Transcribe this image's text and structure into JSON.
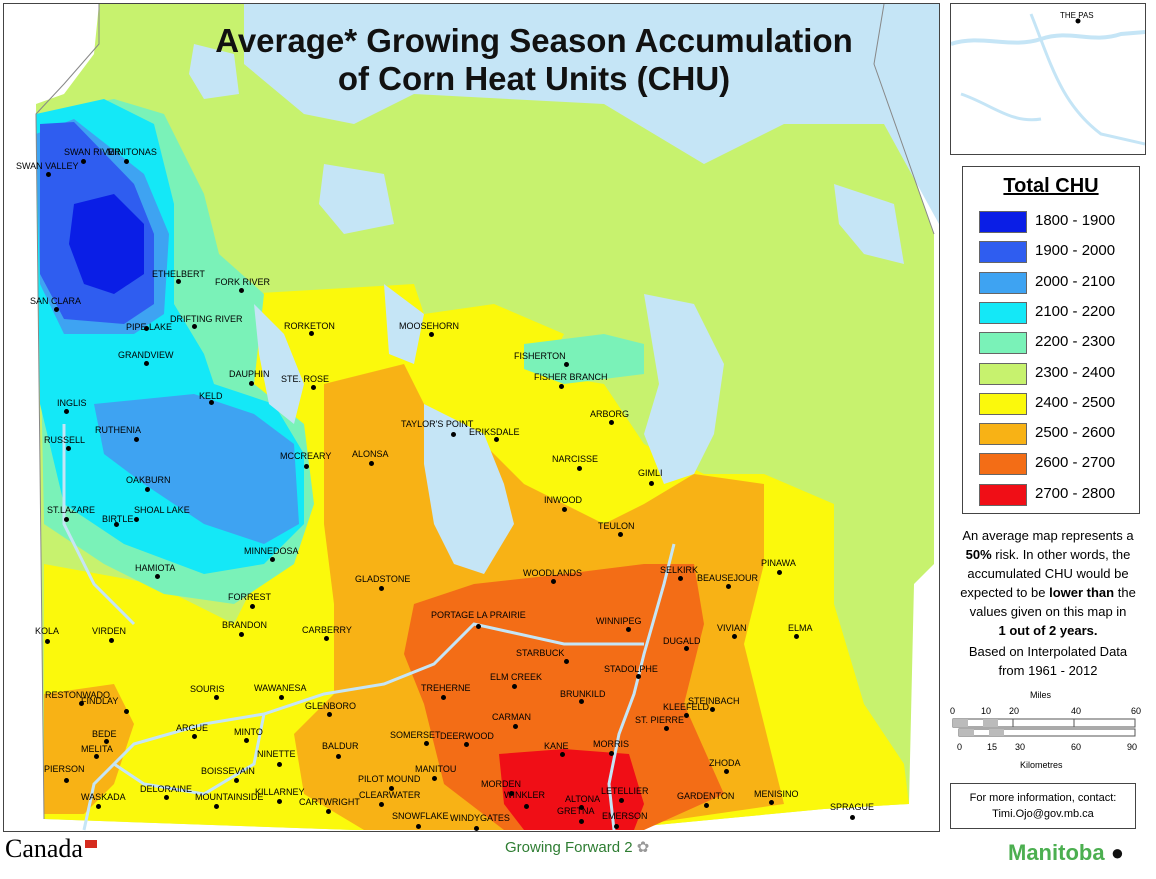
{
  "title_line1": "Average* Growing Season Accumulation",
  "title_line2": "of Corn Heat Units (CHU)",
  "colors": {
    "water": "#c5e5f6",
    "c1800": "#0a1ee6",
    "c1900": "#2f5df0",
    "c2000": "#3ea3f2",
    "c2100": "#14e8f7",
    "c2200": "#7af2b8",
    "c2300": "#c7f26e",
    "c2400": "#fbf90c",
    "c2500": "#f8b215",
    "c2600": "#f36d16",
    "c2700": "#f00e16"
  },
  "legend": {
    "title": "Total CHU",
    "items": [
      {
        "label": "1800 - 1900",
        "color": "#0a1ee6"
      },
      {
        "label": "1900 - 2000",
        "color": "#2f5df0"
      },
      {
        "label": "2000 - 2100",
        "color": "#3ea3f2"
      },
      {
        "label": "2100 - 2200",
        "color": "#14e8f7"
      },
      {
        "label": "2200 - 2300",
        "color": "#7af2b8"
      },
      {
        "label": "2300 - 2400",
        "color": "#c7f26e"
      },
      {
        "label": "2400 - 2500",
        "color": "#fbf90c"
      },
      {
        "label": "2500 - 2600",
        "color": "#f8b215"
      },
      {
        "label": "2600 - 2700",
        "color": "#f36d16"
      },
      {
        "label": "2700 - 2800",
        "color": "#f00e16"
      }
    ]
  },
  "note": {
    "line1": "An average map represents a",
    "line2a": "50%",
    "line2b": " risk. In other words, the",
    "line3": "accumulated CHU would be",
    "line4a": "expected to be ",
    "line4b": "lower than",
    "line4c": " the",
    "line5": "values given on this map in",
    "line6": "1 out of 2 years.",
    "line7": "Based on Interpolated Data",
    "line8": "from 1961 - 2012"
  },
  "scale": {
    "miles_label": "Miles",
    "miles_ticks": [
      "0",
      "10",
      "20",
      "40",
      "60"
    ],
    "km_ticks": [
      "0",
      "15",
      "30",
      "60",
      "90"
    ],
    "km_label": "Kilometres"
  },
  "contact": {
    "line1": "For more information, contact:",
    "line2": "Timi.Ojo@gov.mb.ca"
  },
  "inset_label": "THE PAS",
  "logos": {
    "canada": "Canada",
    "gf2": "Growing Forward 2",
    "manitoba": "Manitoba"
  },
  "cities": [
    {
      "name": "SWAN RIVER"
    },
    {
      "name": "MINITONAS"
    },
    {
      "name": "SWAN VALLEY"
    },
    {
      "name": "ETHELBERT"
    },
    {
      "name": "FORK RIVER"
    },
    {
      "name": "SAN CLARA"
    },
    {
      "name": "PIPE LAKE"
    },
    {
      "name": "DRIFTING RIVER"
    },
    {
      "name": "RORKETON"
    },
    {
      "name": "MOOSEHORN"
    },
    {
      "name": "GRANDVIEW"
    },
    {
      "name": "FISHERTON"
    },
    {
      "name": "DAUPHIN"
    },
    {
      "name": "STE. ROSE"
    },
    {
      "name": "FISHER BRANCH"
    },
    {
      "name": "KELD"
    },
    {
      "name": "INGLIS"
    },
    {
      "name": "ARBORG"
    },
    {
      "name": "TAYLOR'S POINT"
    },
    {
      "name": "ERIKSDALE"
    },
    {
      "name": "RUTHENIA"
    },
    {
      "name": "RUSSELL"
    },
    {
      "name": "ALONSA"
    },
    {
      "name": "MCCREARY"
    },
    {
      "name": "NARCISSE"
    },
    {
      "name": "GIMLI"
    },
    {
      "name": "OAKBURN"
    },
    {
      "name": "INWOOD"
    },
    {
      "name": "ST.LAZARE"
    },
    {
      "name": "SHOAL LAKE"
    },
    {
      "name": "BIRTLE"
    },
    {
      "name": "TEULON"
    },
    {
      "name": "MINNEDOSA"
    },
    {
      "name": "HAMIOTA"
    },
    {
      "name": "WOODLANDS"
    },
    {
      "name": "SELKIRK"
    },
    {
      "name": "PINAWA"
    },
    {
      "name": "GLADSTONE"
    },
    {
      "name": "BEAUSEJOUR"
    },
    {
      "name": "FORREST"
    },
    {
      "name": "PORTAGE LA PRAIRIE"
    },
    {
      "name": "BRANDON"
    },
    {
      "name": "WINNIPEG"
    },
    {
      "name": "KOLA"
    },
    {
      "name": "VIRDEN"
    },
    {
      "name": "CARBERRY"
    },
    {
      "name": "VIVIAN"
    },
    {
      "name": "ELMA"
    },
    {
      "name": "DUGALD"
    },
    {
      "name": "STARBUCK"
    },
    {
      "name": "STADOLPHE"
    },
    {
      "name": "ELM CREEK"
    },
    {
      "name": "RESTONWADO"
    },
    {
      "name": "SOURIS"
    },
    {
      "name": "WAWANESA"
    },
    {
      "name": "TREHERNE"
    },
    {
      "name": "FINDLAY"
    },
    {
      "name": "BRUNKILD"
    },
    {
      "name": "STEINBACH"
    },
    {
      "name": "GLENBORO"
    },
    {
      "name": "KLEEFELD"
    },
    {
      "name": "CARMAN"
    },
    {
      "name": "ST. PIERRE"
    },
    {
      "name": "ARGUE"
    },
    {
      "name": "BEDE"
    },
    {
      "name": "MINTO"
    },
    {
      "name": "SOMERSET"
    },
    {
      "name": "DEERWOOD"
    },
    {
      "name": "MELITA"
    },
    {
      "name": "NINETTE"
    },
    {
      "name": "BALDUR"
    },
    {
      "name": "KANE"
    },
    {
      "name": "MORRIS"
    },
    {
      "name": "ZHODA"
    },
    {
      "name": "PIERSON"
    },
    {
      "name": "BOISSEVAIN"
    },
    {
      "name": "MANITOU"
    },
    {
      "name": "PILOT MOUND"
    },
    {
      "name": "MORDEN"
    },
    {
      "name": "DELORAINE"
    },
    {
      "name": "KILLARNEY"
    },
    {
      "name": "MENISINO"
    },
    {
      "name": "WASKADA"
    },
    {
      "name": "MOUNTAINSIDE"
    },
    {
      "name": "CARTWRIGHT"
    },
    {
      "name": "CLEARWATER"
    },
    {
      "name": "WINKLER"
    },
    {
      "name": "ALTONA"
    },
    {
      "name": "LETELLIER"
    },
    {
      "name": "GARDENTON"
    },
    {
      "name": "SPRAGUE"
    },
    {
      "name": "GRETNA"
    },
    {
      "name": "SNOWFLAKE"
    },
    {
      "name": "WINDYGATES"
    },
    {
      "name": "EMERSON"
    }
  ]
}
